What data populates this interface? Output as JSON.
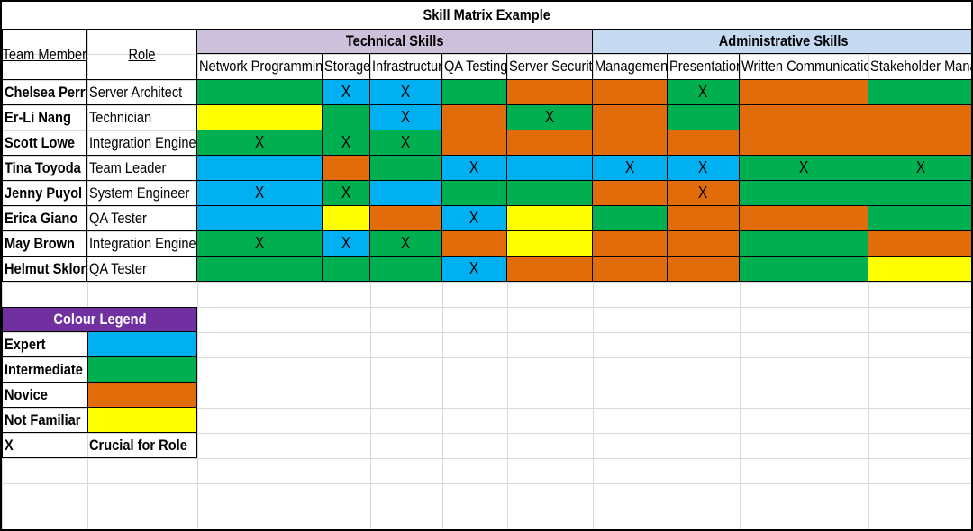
{
  "title": "Skill Matrix Example",
  "headers": {
    "team_member": "Team Member",
    "role": "Role",
    "groups": [
      {
        "label": "Technical Skills",
        "color": "#CCC0DA",
        "span": 5
      },
      {
        "label": "Administrative Skills",
        "color": "#C5D9F1",
        "span": 4
      }
    ],
    "skills": [
      "Network Programming",
      "Storage",
      "Infrastructure",
      "QA Testing",
      "Server Security",
      "Management",
      "Presentation",
      "Written Communication",
      "Stakeholder Management"
    ]
  },
  "levels": {
    "E": {
      "name": "Expert",
      "color": "#00B0F0"
    },
    "I": {
      "name": "Intermediate",
      "color": "#00B050"
    },
    "N": {
      "name": "Novice",
      "color": "#E26B0A"
    },
    "F": {
      "name": "Not Familiar",
      "color": "#FFFF00"
    }
  },
  "crucial_mark": "X",
  "rows": [
    {
      "name": "Chelsea Perry",
      "role": "Server Architect",
      "skills": [
        "I",
        "E",
        "E",
        "I",
        "N",
        "N",
        "I",
        "N",
        "I"
      ],
      "crucial": [
        false,
        true,
        true,
        false,
        false,
        false,
        true,
        false,
        false
      ]
    },
    {
      "name": "Er-Li Nang",
      "role": "Technician",
      "skills": [
        "F",
        "I",
        "E",
        "N",
        "I",
        "N",
        "I",
        "N",
        "N"
      ],
      "crucial": [
        false,
        false,
        true,
        false,
        true,
        false,
        false,
        false,
        false
      ]
    },
    {
      "name": "Scott Lowe",
      "role": "Integration Engineer",
      "skills": [
        "I",
        "I",
        "I",
        "N",
        "N",
        "N",
        "N",
        "N",
        "N"
      ],
      "crucial": [
        true,
        true,
        true,
        false,
        false,
        false,
        false,
        false,
        false
      ]
    },
    {
      "name": "Tina Toyoda",
      "role": "Team Leader",
      "skills": [
        "E",
        "N",
        "I",
        "E",
        "E",
        "E",
        "E",
        "I",
        "I"
      ],
      "crucial": [
        false,
        false,
        false,
        true,
        false,
        true,
        true,
        true,
        true
      ]
    },
    {
      "name": "Jenny Puyol",
      "role": "System Engineer",
      "skills": [
        "E",
        "I",
        "E",
        "I",
        "I",
        "N",
        "N",
        "I",
        "I"
      ],
      "crucial": [
        true,
        true,
        false,
        false,
        false,
        false,
        true,
        false,
        false
      ]
    },
    {
      "name": "Erica Giano",
      "role": "QA Tester",
      "skills": [
        "E",
        "F",
        "N",
        "E",
        "F",
        "I",
        "N",
        "N",
        "I"
      ],
      "crucial": [
        false,
        false,
        false,
        true,
        false,
        false,
        false,
        false,
        false
      ]
    },
    {
      "name": "May Brown",
      "role": "Integration Engineer",
      "skills": [
        "I",
        "E",
        "I",
        "N",
        "F",
        "N",
        "N",
        "I",
        "N"
      ],
      "crucial": [
        true,
        true,
        true,
        false,
        false,
        false,
        false,
        false,
        false
      ]
    },
    {
      "name": "Helmut Sklorz",
      "role": "QA Tester",
      "skills": [
        "I",
        "I",
        "I",
        "E",
        "N",
        "N",
        "N",
        "I",
        "F"
      ],
      "crucial": [
        false,
        false,
        false,
        true,
        false,
        false,
        false,
        false,
        false
      ]
    }
  ],
  "legend": {
    "title": "Colour Legend",
    "title_color": "#7030A0",
    "items": [
      {
        "label": "Expert",
        "level": "E"
      },
      {
        "label": "Intermediate",
        "level": "I"
      },
      {
        "label": "Novice",
        "level": "N"
      },
      {
        "label": "Not Familiar",
        "level": "F"
      }
    ],
    "crucial_symbol": "X",
    "crucial_label": "Crucial for Role"
  }
}
